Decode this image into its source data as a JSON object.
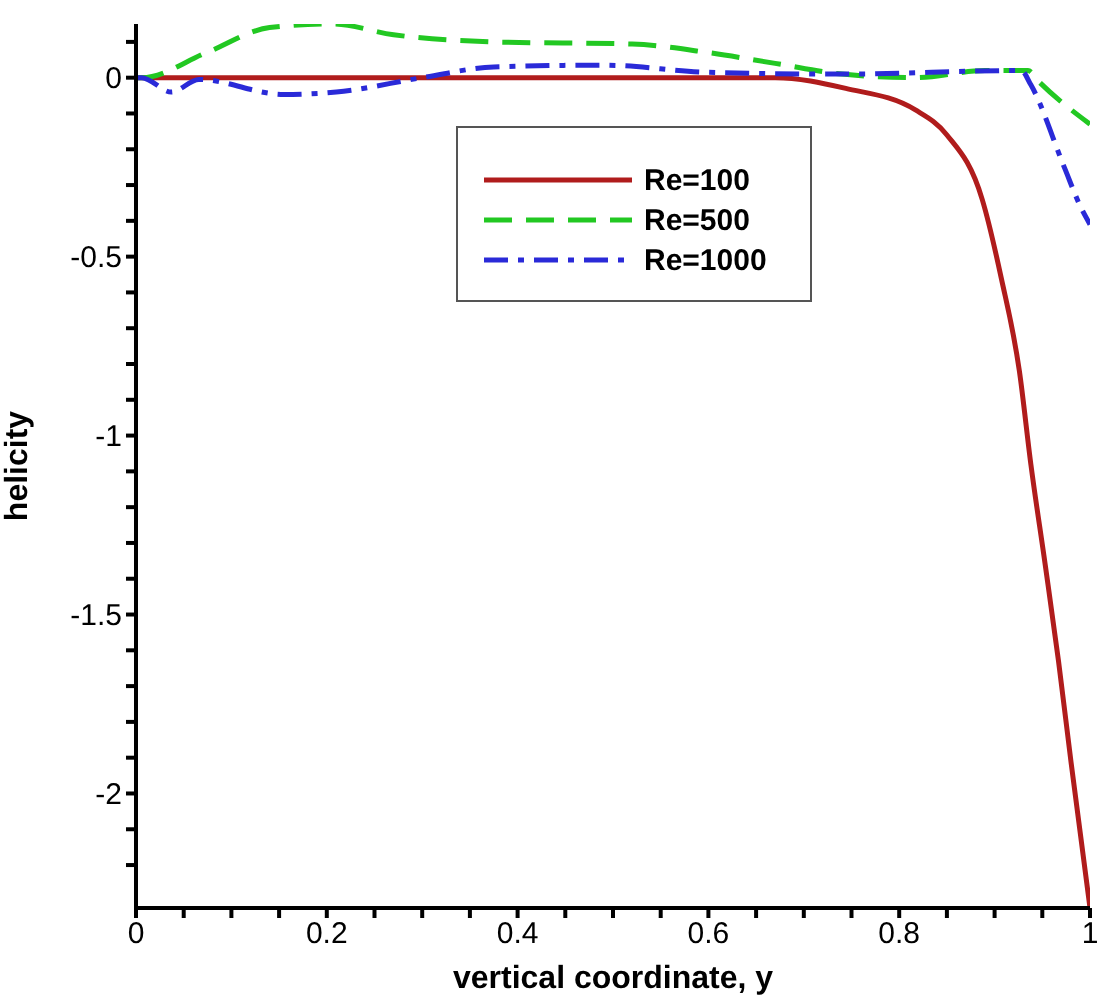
{
  "chart_data": {
    "type": "line",
    "xlabel": "vertical coordinate, y",
    "ylabel": "helicity",
    "xlim": [
      0,
      1
    ],
    "ylim": [
      -2.32,
      0.15
    ],
    "xticks": [
      0,
      {
        "value": 0.05,
        "label": null
      },
      0.2,
      {
        "value": 0.1,
        "label": null
      },
      {
        "value": 0.15,
        "label": null
      },
      {
        "value": 0.25,
        "label": null
      },
      {
        "value": 0.3,
        "label": null
      },
      {
        "value": 0.35,
        "label": null
      },
      0.4,
      {
        "value": 0.45,
        "label": null
      },
      {
        "value": 0.5,
        "label": null
      },
      {
        "value": 0.55,
        "label": null
      },
      0.6,
      {
        "value": 0.65,
        "label": null
      },
      {
        "value": 0.7,
        "label": null
      },
      {
        "value": 0.75,
        "label": null
      },
      0.8,
      {
        "value": 0.85,
        "label": null
      },
      {
        "value": 0.9,
        "label": null
      },
      {
        "value": 0.95,
        "label": null
      },
      1
    ],
    "yticks": [
      {
        "value": 0.1,
        "label": null
      },
      0,
      {
        "value": -0.1,
        "label": null
      },
      {
        "value": -0.2,
        "label": null
      },
      {
        "value": -0.3,
        "label": null
      },
      {
        "value": -0.4,
        "label": null
      },
      -0.5,
      {
        "value": -0.6,
        "label": null
      },
      {
        "value": -0.7,
        "label": null
      },
      {
        "value": -0.8,
        "label": null
      },
      {
        "value": -0.9,
        "label": null
      },
      -1,
      {
        "value": -1.1,
        "label": null
      },
      {
        "value": -1.2,
        "label": null
      },
      {
        "value": -1.3,
        "label": null
      },
      {
        "value": -1.4,
        "label": null
      },
      -1.5,
      {
        "value": -1.6,
        "label": null
      },
      {
        "value": -1.7,
        "label": null
      },
      {
        "value": -1.8,
        "label": null
      },
      {
        "value": -1.9,
        "label": null
      },
      -2,
      {
        "value": -2.1,
        "label": null
      },
      {
        "value": -2.2,
        "label": null
      }
    ],
    "grid": false,
    "legend": "top",
    "marker": "none",
    "series": [
      {
        "name": "Re=100",
        "color": "#b01c1c",
        "line_style": "solid",
        "x": [
          0,
          0.2,
          0.4,
          0.6,
          0.67,
          0.744,
          0.817,
          0.85,
          0.887,
          0.907,
          0.926,
          0.938,
          0.953,
          0.967,
          0.98,
          1
        ],
        "values": [
          0,
          0,
          0,
          0,
          0,
          -0.03,
          -0.09,
          -0.16,
          -0.34,
          -0.56,
          -0.82,
          -1.08,
          -1.36,
          -1.63,
          -1.91,
          -2.32
        ]
      },
      {
        "name": "Re=500",
        "color": "#22c822",
        "line_style": "dashed",
        "x": [
          0,
          0.006,
          0.074,
          0.14,
          0.206,
          0.27,
          0.375,
          0.52,
          0.6,
          0.67,
          0.74,
          0.817,
          0.89,
          0.935,
          0.946,
          1
        ],
        "values": [
          0,
          0,
          0.07,
          0.14,
          0.15,
          0.12,
          0.1,
          0.094,
          0.07,
          0.04,
          0.01,
          0,
          0.02,
          0.02,
          -0.01,
          -0.13
        ]
      },
      {
        "name": "Re=1000",
        "color": "#2a2ad8",
        "line_style": "dashdot",
        "x": [
          0,
          0.006,
          0.037,
          0.066,
          0.155,
          0.21,
          0.3,
          0.375,
          0.49,
          0.6,
          0.74,
          0.928,
          0.938,
          0.973,
          0.99,
          1
        ],
        "values": [
          0,
          0,
          -0.04,
          -0.005,
          -0.047,
          -0.04,
          0,
          0.03,
          0.035,
          0.015,
          0.01,
          0.02,
          -0.02,
          -0.25,
          -0.36,
          -0.41
        ]
      }
    ]
  }
}
